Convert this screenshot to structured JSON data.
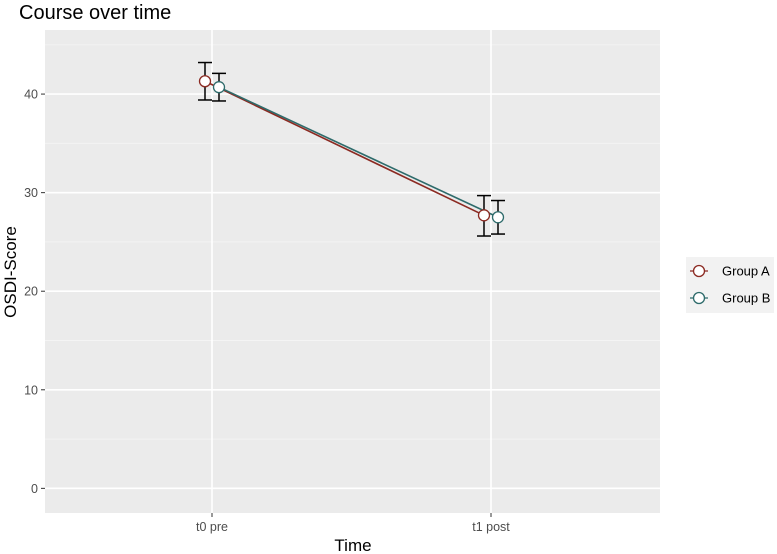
{
  "chart_data": {
    "type": "line",
    "title": "Course over time",
    "xlabel": "Time",
    "ylabel": "OSDI-Score",
    "categories": [
      "t0 pre",
      "t1 post"
    ],
    "ylim": [
      -2.5,
      46.5
    ],
    "yticks": [
      0,
      10,
      20,
      30,
      40
    ],
    "grid": true,
    "legend": "right",
    "error_bars": true,
    "series": [
      {
        "name": "Group A",
        "color": "#8b2a22",
        "values": [
          41.3,
          27.7
        ],
        "error_low": [
          39.4,
          25.6
        ],
        "error_high": [
          43.2,
          29.7
        ]
      },
      {
        "name": "Group B",
        "color": "#2e6b6b",
        "values": [
          40.7,
          27.5
        ],
        "error_low": [
          39.3,
          25.8
        ],
        "error_high": [
          42.1,
          29.2
        ]
      }
    ]
  }
}
